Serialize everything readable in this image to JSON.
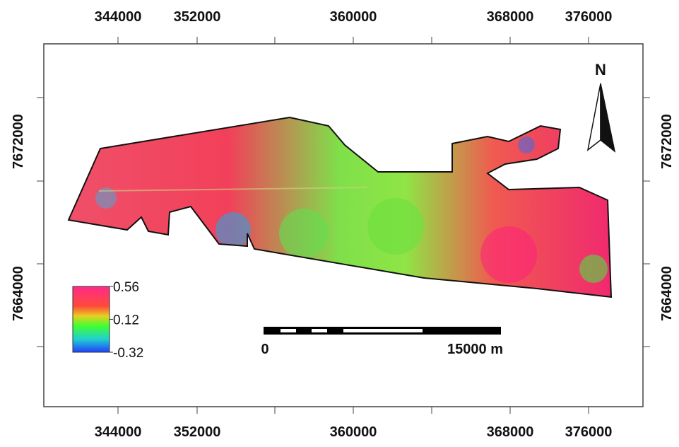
{
  "map": {
    "x_ticks": [
      344000,
      352000,
      360000,
      368000,
      376000
    ],
    "y_ticks": [
      7672000,
      7664000
    ],
    "north_label": "N",
    "legend": {
      "values": [
        0.56,
        0.12,
        -0.32
      ]
    },
    "scale_bar": {
      "start": "0",
      "end": "15000 m"
    }
  }
}
